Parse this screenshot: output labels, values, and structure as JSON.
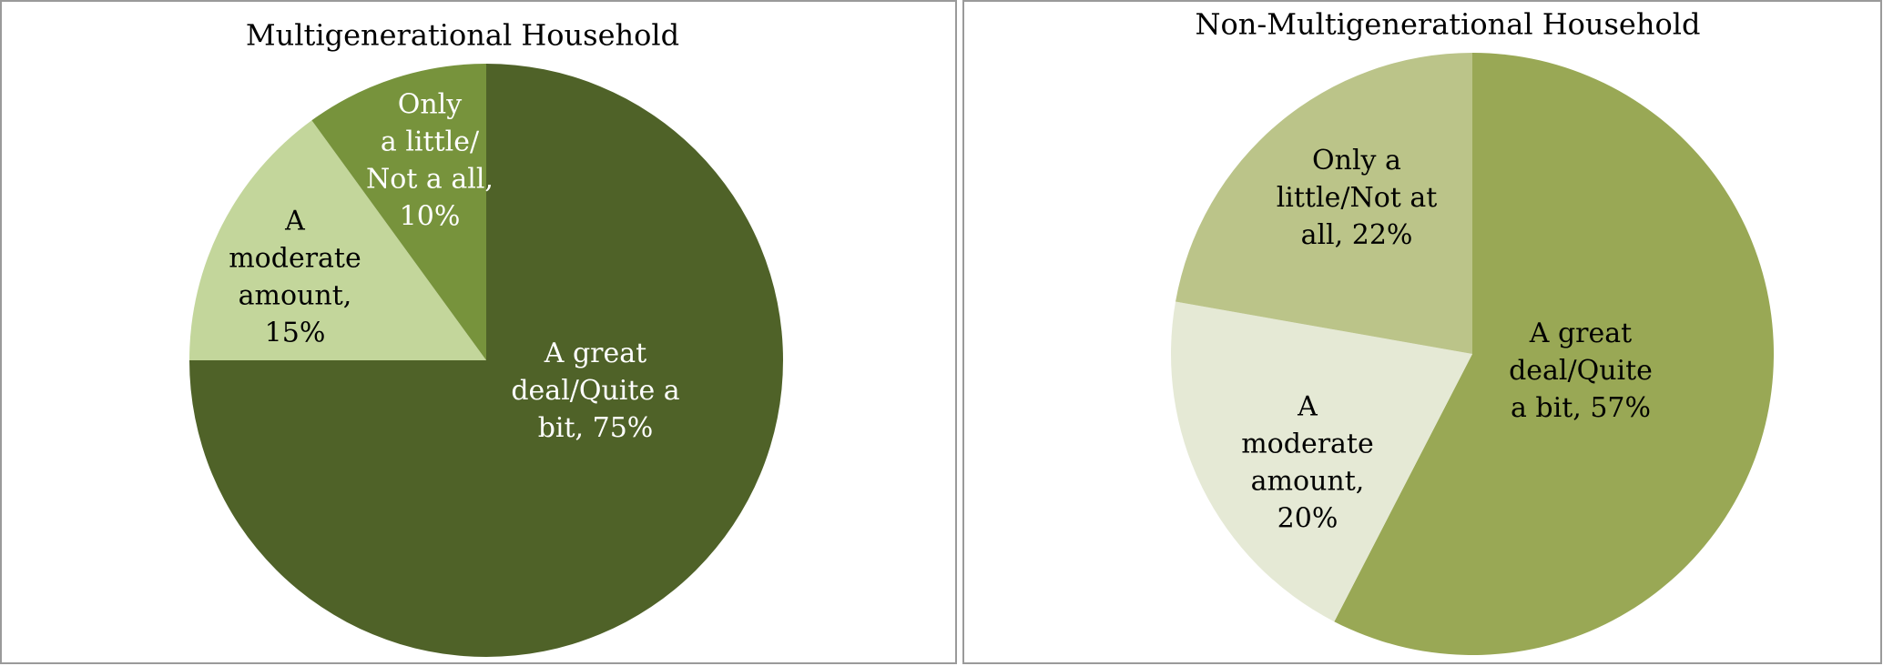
{
  "chart_data": [
    {
      "type": "pie",
      "title": "Multigenerational Household",
      "values": [
        75,
        15,
        10
      ],
      "value_labels": [
        "A great deal/Quite a bit, 75%",
        "A moderate amount, 15%",
        "Only a little/Not a all, 10%"
      ],
      "colors": [
        "#4f6228",
        "#c3d69b",
        "#77933c"
      ],
      "label_colors": [
        "#ffffff",
        "#000000",
        "#ffffff"
      ]
    },
    {
      "type": "pie",
      "title": "Non-Multigenerational Household",
      "values": [
        57,
        20,
        22
      ],
      "value_labels": [
        "A great deal/Quite a bit, 57%",
        "A moderate amount, 20%",
        "Only a little/Not at all, 22%"
      ],
      "colors": [
        "#99a855",
        "#e5e9d5",
        "#bbc489"
      ],
      "label_colors": [
        "#000000",
        "#000000",
        "#000000"
      ]
    }
  ]
}
